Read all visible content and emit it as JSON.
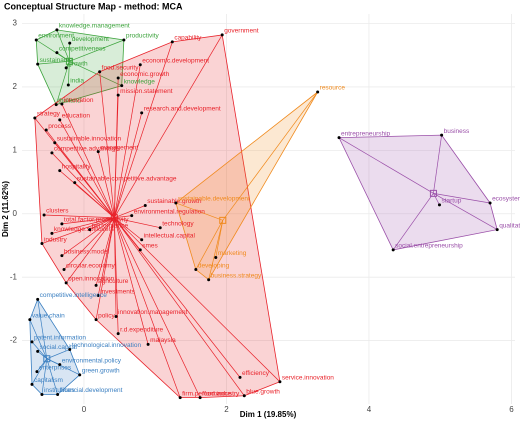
{
  "chart_data": {
    "type": "scatter",
    "title": "Conceptual Structure Map - method: MCA",
    "x_label": "Dim 1 (19.85%)",
    "y_label": "Dim 2 (11.62%)",
    "xlim": [
      -0.87,
      6.05
    ],
    "ylim": [
      -3.0,
      3.15
    ],
    "xticks": [
      0,
      2,
      4,
      6
    ],
    "yticks": [
      -2,
      -1,
      0,
      1,
      2,
      3
    ],
    "grid": true,
    "series": [
      {
        "color": "#3ca33c",
        "labels": [
          "knowledge.management",
          "environment",
          "development",
          "competitiveness",
          "sustainable",
          "growth",
          "productivity",
          "india",
          "knowledge",
          "thailand"
        ],
        "x": [
          -0.38,
          -0.67,
          -0.2,
          -0.38,
          -0.65,
          -0.25,
          0.56,
          -0.22,
          0.53,
          -0.39
        ],
        "values": [
          2.9,
          2.74,
          2.69,
          2.54,
          2.36,
          2.3,
          2.74,
          2.03,
          2.02,
          1.72
        ]
      },
      {
        "color": "#e8222a",
        "labels": [
          "capability",
          "government",
          "food.security",
          "economic.development",
          "economic.growth",
          "mission.statement",
          "innovation",
          "strategy",
          "education",
          "research.and.development",
          "process",
          "sustainable.innovation",
          "competitive.advantage",
          "management",
          "hospitality",
          "sustainable.competitive.advantage",
          "clusters",
          "total.factor.productivity",
          "knowledge.spillovers",
          "industry",
          "business.model",
          "circular.economy",
          "open.innovation",
          "agriculture",
          "investments",
          "policy",
          "innovation.management",
          "r.d.expenditure",
          "malaysia",
          "efficiency",
          "service.innovation",
          "blue.growth",
          "firm.performance",
          "food.industry",
          "technology",
          "intellectual.capital",
          "performance",
          "smes",
          "environmental.regulation",
          "sustainable.growth"
        ],
        "x": [
          1.24,
          1.94,
          0.22,
          0.79,
          0.48,
          0.48,
          -0.31,
          -0.69,
          -0.34,
          0.81,
          -0.53,
          -0.41,
          -0.45,
          0.2,
          -0.34,
          -0.13,
          -0.56,
          -0.31,
          -0.45,
          -0.59,
          -0.31,
          -0.28,
          -0.25,
          0.17,
          0.2,
          0.17,
          0.45,
          0.48,
          0.9,
          2.19,
          2.75,
          2.25,
          1.35,
          1.63,
          1.07,
          0.81,
          0.08,
          0.79,
          0.67,
          0.86
        ],
        "values": [
          2.71,
          2.82,
          2.24,
          2.35,
          2.14,
          1.87,
          1.73,
          1.51,
          1.48,
          1.59,
          1.32,
          1.12,
          0.96,
          0.98,
          0.68,
          0.49,
          -0.02,
          -0.16,
          -0.31,
          -0.47,
          -0.66,
          -0.88,
          -1.09,
          -1.13,
          -1.29,
          -1.67,
          -1.62,
          -1.89,
          -2.06,
          -2.58,
          -2.65,
          -2.87,
          -2.9,
          -2.9,
          -0.22,
          -0.41,
          -0.25,
          -0.57,
          -0.03,
          0.13
        ]
      },
      {
        "color": "#f08a1d",
        "labels": [
          "resource",
          "sustainable.development",
          "marketing",
          "developing",
          "business.strategy"
        ],
        "x": [
          3.28,
          1.29,
          1.85,
          1.57,
          1.75
        ],
        "values": [
          1.92,
          0.17,
          -0.69,
          -0.88,
          -1.04
        ]
      },
      {
        "color": "#9a4fa8",
        "labels": [
          "entrepreneurship",
          "business",
          "startup",
          "ecosystem",
          "qualitative.research",
          "social.entrepreneurship"
        ],
        "x": [
          3.58,
          5.02,
          4.99,
          5.7,
          5.8,
          4.34
        ],
        "values": [
          1.2,
          1.24,
          0.14,
          0.17,
          -0.25,
          -0.57
        ]
      },
      {
        "color": "#3a7fc1",
        "labels": [
          "competitive.intelligence",
          "value.chain",
          "patent.information",
          "social.capital",
          "environmental.policy",
          "enterprises",
          "green.growth",
          "capitalism",
          "institutions",
          "financial.development",
          "technological.innovation"
        ],
        "x": [
          -0.65,
          -0.76,
          -0.73,
          -0.65,
          -0.34,
          -0.66,
          -0.06,
          -0.73,
          -0.59,
          -0.37,
          -0.2
        ],
        "values": [
          -1.35,
          -1.67,
          -2.02,
          -2.17,
          -2.38,
          -2.49,
          -2.54,
          -2.69,
          -2.85,
          -2.85,
          -2.14
        ]
      }
    ]
  }
}
